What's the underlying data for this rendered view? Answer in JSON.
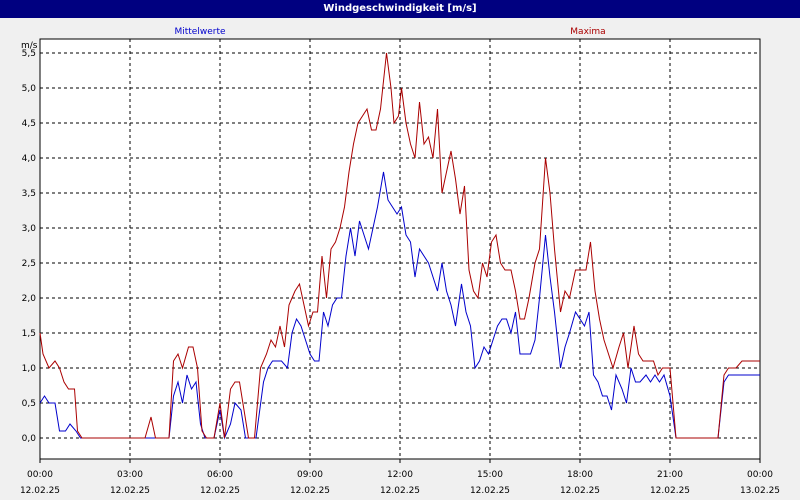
{
  "window": {
    "title": "Windgeschwindigkeit [m/s]"
  },
  "colors": {
    "background": "#f0f0f0",
    "title_bar": "#000080",
    "mittelwerte": "#0000cc",
    "maxima": "#aa0000"
  },
  "chart_data": {
    "type": "line",
    "title": "Windgeschwindigkeit [m/s]",
    "ylabel": "m/s",
    "ylim": [
      -0.3,
      5.7
    ],
    "xlim": [
      0,
      24
    ],
    "grid": true,
    "y_ticks": [
      "0,0",
      "0,5",
      "1,0",
      "1,5",
      "2,0",
      "2,5",
      "3,0",
      "3,5",
      "4,0",
      "4,5",
      "5,0",
      "5,5"
    ],
    "x_ticks": [
      {
        "time": "00:00",
        "date": "12.02.25"
      },
      {
        "time": "03:00",
        "date": "12.02.25"
      },
      {
        "time": "06:00",
        "date": "12.02.25"
      },
      {
        "time": "09:00",
        "date": "12.02.25"
      },
      {
        "time": "12:00",
        "date": "12.02.25"
      },
      {
        "time": "15:00",
        "date": "12.02.25"
      },
      {
        "time": "18:00",
        "date": "12.02.25"
      },
      {
        "time": "21:00",
        "date": "12.02.25"
      },
      {
        "time": "00:00",
        "date": "13.02.25"
      }
    ],
    "series": [
      {
        "name": "Mittelwerte",
        "color": "#0000cc",
        "points": [
          [
            0,
            0.5
          ],
          [
            0.15,
            0.6
          ],
          [
            0.3,
            0.5
          ],
          [
            0.5,
            0.5
          ],
          [
            0.65,
            0.1
          ],
          [
            0.85,
            0.1
          ],
          [
            1.0,
            0.2
          ],
          [
            1.2,
            0.1
          ],
          [
            1.35,
            0
          ],
          [
            1.5,
            0
          ],
          [
            3.5,
            0
          ],
          [
            3.9,
            0
          ],
          [
            4.3,
            0
          ],
          [
            4.45,
            0.6
          ],
          [
            4.6,
            0.8
          ],
          [
            4.75,
            0.5
          ],
          [
            4.9,
            0.9
          ],
          [
            5.05,
            0.7
          ],
          [
            5.2,
            0.8
          ],
          [
            5.35,
            0.2
          ],
          [
            5.5,
            0
          ],
          [
            5.8,
            0
          ],
          [
            6.0,
            0.4
          ],
          [
            6.15,
            0
          ],
          [
            6.35,
            0.2
          ],
          [
            6.5,
            0.5
          ],
          [
            6.7,
            0.4
          ],
          [
            6.85,
            0
          ],
          [
            7.0,
            0
          ],
          [
            7.2,
            0
          ],
          [
            7.45,
            0.8
          ],
          [
            7.6,
            1.0
          ],
          [
            7.75,
            1.1
          ],
          [
            8.05,
            1.1
          ],
          [
            8.25,
            1.0
          ],
          [
            8.4,
            1.5
          ],
          [
            8.55,
            1.7
          ],
          [
            8.7,
            1.6
          ],
          [
            8.85,
            1.4
          ],
          [
            9.0,
            1.2
          ],
          [
            9.15,
            1.1
          ],
          [
            9.3,
            1.1
          ],
          [
            9.45,
            1.8
          ],
          [
            9.6,
            1.6
          ],
          [
            9.75,
            1.9
          ],
          [
            9.9,
            2.0
          ],
          [
            10.05,
            2.0
          ],
          [
            10.2,
            2.6
          ],
          [
            10.35,
            3.0
          ],
          [
            10.5,
            2.6
          ],
          [
            10.65,
            3.1
          ],
          [
            10.8,
            2.9
          ],
          [
            10.95,
            2.7
          ],
          [
            11.1,
            3.0
          ],
          [
            11.25,
            3.3
          ],
          [
            11.45,
            3.8
          ],
          [
            11.6,
            3.4
          ],
          [
            11.75,
            3.3
          ],
          [
            11.9,
            3.2
          ],
          [
            12.05,
            3.3
          ],
          [
            12.2,
            2.9
          ],
          [
            12.35,
            2.8
          ],
          [
            12.5,
            2.3
          ],
          [
            12.65,
            2.7
          ],
          [
            12.8,
            2.6
          ],
          [
            12.95,
            2.5
          ],
          [
            13.1,
            2.3
          ],
          [
            13.25,
            2.1
          ],
          [
            13.4,
            2.5
          ],
          [
            13.55,
            2.1
          ],
          [
            13.7,
            1.9
          ],
          [
            13.85,
            1.6
          ],
          [
            14.05,
            2.2
          ],
          [
            14.2,
            1.8
          ],
          [
            14.35,
            1.6
          ],
          [
            14.5,
            1.0
          ],
          [
            14.65,
            1.1
          ],
          [
            14.8,
            1.3
          ],
          [
            14.95,
            1.2
          ],
          [
            15.1,
            1.4
          ],
          [
            15.25,
            1.6
          ],
          [
            15.4,
            1.7
          ],
          [
            15.55,
            1.7
          ],
          [
            15.7,
            1.5
          ],
          [
            15.85,
            1.8
          ],
          [
            16.0,
            1.2
          ],
          [
            16.35,
            1.2
          ],
          [
            16.5,
            1.4
          ],
          [
            16.65,
            2.0
          ],
          [
            16.85,
            2.9
          ],
          [
            17.0,
            2.3
          ],
          [
            17.15,
            1.8
          ],
          [
            17.35,
            1.0
          ],
          [
            17.5,
            1.3
          ],
          [
            17.65,
            1.5
          ],
          [
            17.85,
            1.8
          ],
          [
            18.0,
            1.7
          ],
          [
            18.15,
            1.6
          ],
          [
            18.3,
            1.8
          ],
          [
            18.45,
            0.9
          ],
          [
            18.6,
            0.8
          ],
          [
            18.75,
            0.6
          ],
          [
            18.9,
            0.6
          ],
          [
            19.05,
            0.4
          ],
          [
            19.2,
            0.9
          ],
          [
            19.4,
            0.7
          ],
          [
            19.55,
            0.5
          ],
          [
            19.7,
            1.0
          ],
          [
            19.85,
            0.8
          ],
          [
            20.0,
            0.8
          ],
          [
            20.2,
            0.9
          ],
          [
            20.35,
            0.8
          ],
          [
            20.5,
            0.9
          ],
          [
            20.65,
            0.8
          ],
          [
            20.8,
            0.9
          ],
          [
            21.0,
            0.6
          ],
          [
            21.2,
            0
          ],
          [
            22.0,
            0
          ],
          [
            22.6,
            0
          ],
          [
            22.8,
            0.8
          ],
          [
            22.95,
            0.9
          ],
          [
            24.0,
            0.9
          ]
        ]
      },
      {
        "name": "Maxima",
        "color": "#aa0000",
        "points": [
          [
            0,
            1.5
          ],
          [
            0.1,
            1.2
          ],
          [
            0.3,
            1.0
          ],
          [
            0.5,
            1.1
          ],
          [
            0.65,
            1.0
          ],
          [
            0.8,
            0.8
          ],
          [
            0.95,
            0.7
          ],
          [
            1.15,
            0.7
          ],
          [
            1.25,
            0.1
          ],
          [
            1.4,
            0
          ],
          [
            3.5,
            0
          ],
          [
            3.7,
            0.3
          ],
          [
            3.85,
            0
          ],
          [
            4.3,
            0
          ],
          [
            4.45,
            1.1
          ],
          [
            4.6,
            1.2
          ],
          [
            4.75,
            1.0
          ],
          [
            4.95,
            1.3
          ],
          [
            5.1,
            1.3
          ],
          [
            5.25,
            1.0
          ],
          [
            5.4,
            0.1
          ],
          [
            5.55,
            0
          ],
          [
            5.8,
            0
          ],
          [
            6.0,
            0.5
          ],
          [
            6.15,
            0
          ],
          [
            6.35,
            0.7
          ],
          [
            6.5,
            0.8
          ],
          [
            6.65,
            0.8
          ],
          [
            6.8,
            0.4
          ],
          [
            6.95,
            0
          ],
          [
            7.15,
            0
          ],
          [
            7.35,
            1.0
          ],
          [
            7.55,
            1.2
          ],
          [
            7.7,
            1.4
          ],
          [
            7.85,
            1.3
          ],
          [
            8.0,
            1.6
          ],
          [
            8.15,
            1.3
          ],
          [
            8.3,
            1.9
          ],
          [
            8.5,
            2.1
          ],
          [
            8.65,
            2.2
          ],
          [
            8.8,
            1.9
          ],
          [
            8.95,
            1.6
          ],
          [
            9.1,
            1.8
          ],
          [
            9.25,
            1.8
          ],
          [
            9.4,
            2.6
          ],
          [
            9.55,
            2.0
          ],
          [
            9.7,
            2.7
          ],
          [
            9.85,
            2.8
          ],
          [
            10.0,
            3.0
          ],
          [
            10.15,
            3.3
          ],
          [
            10.3,
            3.8
          ],
          [
            10.45,
            4.2
          ],
          [
            10.6,
            4.5
          ],
          [
            10.75,
            4.6
          ],
          [
            10.9,
            4.7
          ],
          [
            11.05,
            4.4
          ],
          [
            11.2,
            4.4
          ],
          [
            11.35,
            4.7
          ],
          [
            11.45,
            5.1
          ],
          [
            11.55,
            5.5
          ],
          [
            11.7,
            5.0
          ],
          [
            11.8,
            4.5
          ],
          [
            11.95,
            4.6
          ],
          [
            12.05,
            5.0
          ],
          [
            12.2,
            4.5
          ],
          [
            12.35,
            4.2
          ],
          [
            12.5,
            4.0
          ],
          [
            12.65,
            4.8
          ],
          [
            12.8,
            4.2
          ],
          [
            12.95,
            4.3
          ],
          [
            13.1,
            4.0
          ],
          [
            13.25,
            4.7
          ],
          [
            13.4,
            3.5
          ],
          [
            13.55,
            3.8
          ],
          [
            13.7,
            4.1
          ],
          [
            13.85,
            3.7
          ],
          [
            14.0,
            3.2
          ],
          [
            14.15,
            3.6
          ],
          [
            14.3,
            2.4
          ],
          [
            14.45,
            2.1
          ],
          [
            14.6,
            2.0
          ],
          [
            14.75,
            2.5
          ],
          [
            14.9,
            2.3
          ],
          [
            15.05,
            2.8
          ],
          [
            15.2,
            2.9
          ],
          [
            15.35,
            2.5
          ],
          [
            15.5,
            2.4
          ],
          [
            15.7,
            2.4
          ],
          [
            15.85,
            2.1
          ],
          [
            16.0,
            1.7
          ],
          [
            16.15,
            1.7
          ],
          [
            16.3,
            2.0
          ],
          [
            16.5,
            2.5
          ],
          [
            16.65,
            2.7
          ],
          [
            16.85,
            4.0
          ],
          [
            17.0,
            3.5
          ],
          [
            17.15,
            2.7
          ],
          [
            17.35,
            1.8
          ],
          [
            17.5,
            2.1
          ],
          [
            17.65,
            2.0
          ],
          [
            17.85,
            2.4
          ],
          [
            18.0,
            2.4
          ],
          [
            18.2,
            2.4
          ],
          [
            18.35,
            2.8
          ],
          [
            18.5,
            2.1
          ],
          [
            18.65,
            1.7
          ],
          [
            18.8,
            1.4
          ],
          [
            18.95,
            1.2
          ],
          [
            19.1,
            1.0
          ],
          [
            19.3,
            1.3
          ],
          [
            19.45,
            1.5
          ],
          [
            19.6,
            1.0
          ],
          [
            19.8,
            1.6
          ],
          [
            19.95,
            1.2
          ],
          [
            20.1,
            1.1
          ],
          [
            20.3,
            1.1
          ],
          [
            20.45,
            1.1
          ],
          [
            20.6,
            0.9
          ],
          [
            20.75,
            1.0
          ],
          [
            21.0,
            1.0
          ],
          [
            21.2,
            0
          ],
          [
            22.0,
            0
          ],
          [
            22.6,
            0
          ],
          [
            22.8,
            0.9
          ],
          [
            22.95,
            1.0
          ],
          [
            23.2,
            1.0
          ],
          [
            23.4,
            1.1
          ],
          [
            24.0,
            1.1
          ]
        ]
      }
    ]
  }
}
